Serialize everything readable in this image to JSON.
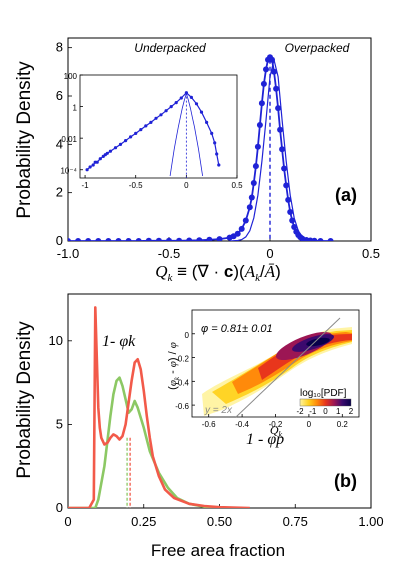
{
  "colors": {
    "blue": "#1f22d6",
    "red": "#f25a4a",
    "green": "#8cc864",
    "gray": "#8a8a8a"
  },
  "chart_data": [
    {
      "type": "line",
      "panel_label": "(a)",
      "xlabel": "Q_k ≡ (∇ · c)(A_k / Ā)",
      "ylabel": "Probability Density",
      "xlim": [
        -1.0,
        0.5
      ],
      "ylim": [
        0,
        8.4
      ],
      "xticks": [
        -1.0,
        -0.5,
        0,
        0.5
      ],
      "xtick_labels": [
        "-1.0",
        "-0.5",
        "0",
        "0.5"
      ],
      "yticks": [
        0,
        2,
        4,
        6,
        8
      ],
      "ytick_labels": [
        "0",
        "2",
        "4",
        "6",
        "8"
      ],
      "region_labels": [
        "Underpacked",
        "Overpacked"
      ],
      "vline_x": 0.0,
      "series": [
        {
          "style": "markers+line",
          "x": [
            -1.0,
            -0.95,
            -0.9,
            -0.85,
            -0.8,
            -0.75,
            -0.7,
            -0.65,
            -0.6,
            -0.55,
            -0.5,
            -0.45,
            -0.4,
            -0.35,
            -0.3,
            -0.25,
            -0.2,
            -0.18,
            -0.16,
            -0.14,
            -0.12,
            -0.1,
            -0.09,
            -0.08,
            -0.07,
            -0.06,
            -0.05,
            -0.04,
            -0.03,
            -0.02,
            -0.01,
            0.0,
            0.01,
            0.02,
            0.03,
            0.04,
            0.05,
            0.06,
            0.07,
            0.08,
            0.09,
            0.1,
            0.11,
            0.12,
            0.13,
            0.14,
            0.15,
            0.16,
            0.18,
            0.2,
            0.22,
            0.25,
            0.3
          ],
          "y": [
            0.0,
            0.0,
            0.0,
            0.0,
            0.0,
            0.0,
            0.0,
            0.0,
            0.01,
            0.01,
            0.01,
            0.01,
            0.02,
            0.03,
            0.05,
            0.08,
            0.14,
            0.2,
            0.3,
            0.5,
            0.85,
            1.4,
            1.8,
            2.4,
            3.1,
            3.9,
            4.8,
            5.7,
            6.5,
            7.1,
            7.5,
            7.6,
            7.5,
            7.0,
            6.3,
            5.5,
            4.6,
            3.8,
            3.0,
            2.3,
            1.7,
            1.2,
            0.85,
            0.58,
            0.38,
            0.25,
            0.16,
            0.1,
            0.04,
            0.02,
            0.01,
            0.0,
            0.0
          ]
        },
        {
          "style": "line",
          "x": [
            -0.2,
            -0.16,
            -0.14,
            -0.12,
            -0.1,
            -0.08,
            -0.06,
            -0.04,
            -0.02,
            0.0,
            0.02,
            0.04,
            0.06,
            0.08,
            0.1,
            0.12,
            0.14,
            0.16,
            0.18,
            0.2
          ],
          "y": [
            0.0,
            0.02,
            0.06,
            0.17,
            0.42,
            0.95,
            1.9,
            3.3,
            5.0,
            6.8,
            7.5,
            6.8,
            5.0,
            3.3,
            1.9,
            0.95,
            0.42,
            0.17,
            0.06,
            0.02
          ]
        }
      ],
      "inset": {
        "type": "line",
        "yscale": "log",
        "xlim": [
          -1.05,
          0.5
        ],
        "ylim": [
          3e-05,
          100
        ],
        "xticks": [
          -1,
          -0.5,
          0,
          0.5
        ],
        "xtick_labels": [
          "-1",
          "-0.5",
          "0",
          "0.5"
        ],
        "yticks": [
          0.0001,
          0.01,
          1,
          100
        ],
        "ytick_labels": [
          "10⁻⁴",
          "0.01",
          "1",
          "100"
        ],
        "vline_x": 0.0,
        "series": [
          {
            "style": "markers+line",
            "x": [
              -0.98,
              -0.95,
              -0.92,
              -0.9,
              -0.88,
              -0.85,
              -0.82,
              -0.8,
              -0.78,
              -0.75,
              -0.7,
              -0.65,
              -0.6,
              -0.55,
              -0.5,
              -0.45,
              -0.4,
              -0.35,
              -0.3,
              -0.25,
              -0.2,
              -0.15,
              -0.1,
              -0.05,
              0.0,
              0.05,
              0.1,
              0.15,
              0.2,
              0.25,
              0.28,
              0.3,
              0.32
            ],
            "y": [
              0.0001,
              0.00015,
              0.0002,
              0.0003,
              0.0003,
              0.0005,
              0.0007,
              0.0009,
              0.0011,
              0.0015,
              0.0025,
              0.004,
              0.007,
              0.012,
              0.02,
              0.035,
              0.06,
              0.1,
              0.18,
              0.3,
              0.55,
              1.0,
              1.8,
              3.5,
              7.6,
              3.8,
              1.5,
              0.45,
              0.1,
              0.02,
              0.005,
              0.001,
              0.0002
            ]
          },
          {
            "style": "line",
            "x": [
              -0.16,
              -0.14,
              -0.12,
              -0.1,
              -0.08,
              -0.06,
              -0.04,
              -0.02,
              0.0,
              0.02,
              0.04,
              0.06,
              0.08,
              0.1,
              0.12,
              0.14,
              0.16
            ],
            "y": [
              4e-05,
              0.0003,
              0.002,
              0.01,
              0.05,
              0.2,
              0.8,
              2.5,
              6.8,
              2.5,
              0.8,
              0.2,
              0.05,
              0.01,
              0.002,
              0.0003,
              4e-05
            ]
          }
        ]
      }
    },
    {
      "type": "line",
      "panel_label": "(b)",
      "xlabel": "Free area fraction",
      "ylabel": "Probability Density",
      "xlim": [
        0,
        1.0
      ],
      "ylim": [
        0,
        12.8
      ],
      "xticks": [
        0,
        0.25,
        0.5,
        0.75,
        1.0
      ],
      "xtick_labels": [
        "0",
        "0.25",
        "0.50",
        "0.75",
        "1.00"
      ],
      "yticks": [
        0,
        5,
        10
      ],
      "ytick_labels": [
        "0",
        "5",
        "10"
      ],
      "series": [
        {
          "name": "1- φk",
          "x": [
            0.0,
            0.07,
            0.085,
            0.09,
            0.095,
            0.1,
            0.105,
            0.11,
            0.12,
            0.13,
            0.14,
            0.15,
            0.16,
            0.17,
            0.18,
            0.19,
            0.2,
            0.21,
            0.22,
            0.23,
            0.24,
            0.25,
            0.26,
            0.27,
            0.28,
            0.3,
            0.32,
            0.35,
            0.4,
            0.45,
            0.5,
            0.6
          ],
          "y": [
            0.0,
            0.0,
            0.5,
            12.0,
            9.0,
            6.0,
            4.8,
            4.2,
            3.8,
            3.9,
            4.2,
            4.4,
            4.3,
            4.1,
            4.3,
            5.0,
            6.3,
            7.6,
            8.7,
            8.9,
            8.3,
            7.0,
            5.5,
            4.2,
            3.1,
            1.9,
            1.1,
            0.6,
            0.25,
            0.12,
            0.05,
            0.0
          ]
        },
        {
          "name": "1 - φp",
          "x": [
            0.0,
            0.08,
            0.09,
            0.1,
            0.12,
            0.14,
            0.15,
            0.16,
            0.17,
            0.18,
            0.19,
            0.2,
            0.21,
            0.22,
            0.23,
            0.25,
            0.27,
            0.3,
            0.33,
            0.36,
            0.4,
            0.45,
            0.5
          ],
          "y": [
            0.0,
            0.0,
            0.0,
            0.5,
            2.5,
            5.5,
            6.8,
            7.6,
            7.8,
            7.3,
            6.5,
            5.7,
            5.9,
            6.4,
            6.0,
            4.8,
            3.4,
            2.1,
            1.2,
            0.6,
            0.25,
            0.08,
            0.0
          ]
        }
      ],
      "vlines": [
        {
          "series": "1- φk",
          "x": 0.205
        },
        {
          "series": "1 - φp",
          "x": 0.195
        }
      ],
      "inset": {
        "type": "heatmap",
        "annotation": "φ = 0.81± 0.01",
        "line_label": "y = 2x",
        "xlabel": "Q_k",
        "ylabel": "(φ_k - φ) / φ",
        "xlim": [
          -0.7,
          0.3
        ],
        "ylim": [
          -0.7,
          0.2
        ],
        "xticks": [
          -0.6,
          -0.4,
          -0.2,
          0,
          0.2
        ],
        "xtick_labels": [
          "-0.6",
          "-0.4",
          "-0.2",
          "0",
          "0.2"
        ],
        "yticks": [
          -0.6,
          -0.4,
          -0.2,
          0
        ],
        "ytick_labels": [
          "-0.6",
          "-0.4",
          "-0.2",
          "0"
        ],
        "colorbar": {
          "label": "log₁₀[PDF]",
          "ticks": [
            -2,
            -1,
            0,
            1,
            2
          ],
          "tick_labels": [
            "-2",
            "-1",
            "0",
            "1",
            "2"
          ],
          "colors": [
            "#fff3a0",
            "#ffd21f",
            "#ff8a0a",
            "#e8361c",
            "#9c1654",
            "#3b0a6e",
            "#07004a"
          ]
        }
      }
    }
  ]
}
